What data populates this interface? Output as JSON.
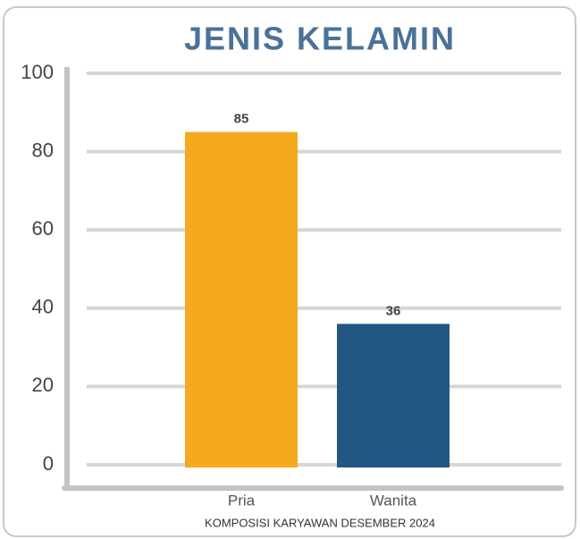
{
  "chart_data": {
    "type": "bar",
    "title": "JENIS KELAMIN",
    "xlabel": "KOMPOSISI KARYAWAN DESEMBER 2024",
    "categories": [
      "Pria",
      "Wanita"
    ],
    "values": [
      85,
      36
    ],
    "colors": [
      "#f5a91d",
      "#225784"
    ],
    "ylim": [
      0,
      100
    ],
    "yticks": [
      0,
      20,
      40,
      60,
      80,
      100
    ],
    "grid": true
  }
}
